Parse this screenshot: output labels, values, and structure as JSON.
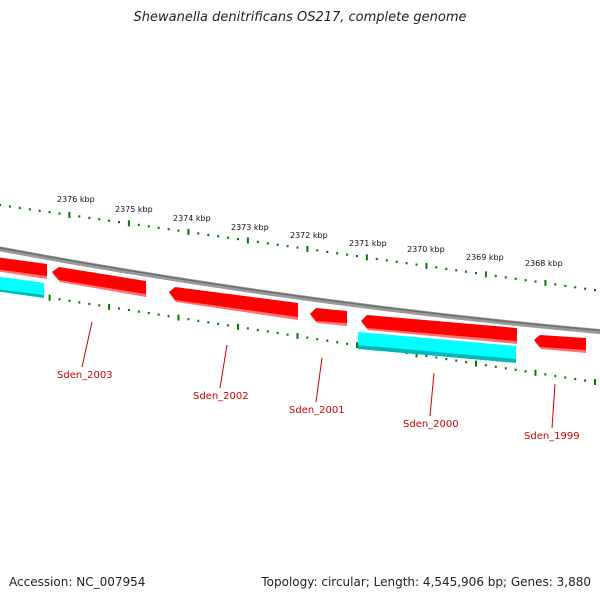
{
  "title": "Shewanella denitrificans OS217, complete genome",
  "footer": {
    "accession": "Accession: NC_007954",
    "summary": "Topology: circular; Length: 4,545,906 bp; Genes: 3,880"
  },
  "colors": {
    "backbone": "#808080",
    "forward_gene": "#ff0000",
    "reverse_gene": "#00ffff",
    "tick": "#007a00",
    "label_line": "#cc0000"
  },
  "scale_ticks": [
    {
      "label": "2376 kbp"
    },
    {
      "label": "2375 kbp"
    },
    {
      "label": "2374 kbp"
    },
    {
      "label": "2373 kbp"
    },
    {
      "label": "2372 kbp"
    },
    {
      "label": "2371 kbp"
    },
    {
      "label": "2370 kbp"
    },
    {
      "label": "2369 kbp"
    },
    {
      "label": "2368 kbp"
    }
  ],
  "gene_labels": [
    {
      "name": "Sden_2003"
    },
    {
      "name": "Sden_2002"
    },
    {
      "name": "Sden_2001"
    },
    {
      "name": "Sden_2000"
    },
    {
      "name": "Sden_1999"
    }
  ]
}
